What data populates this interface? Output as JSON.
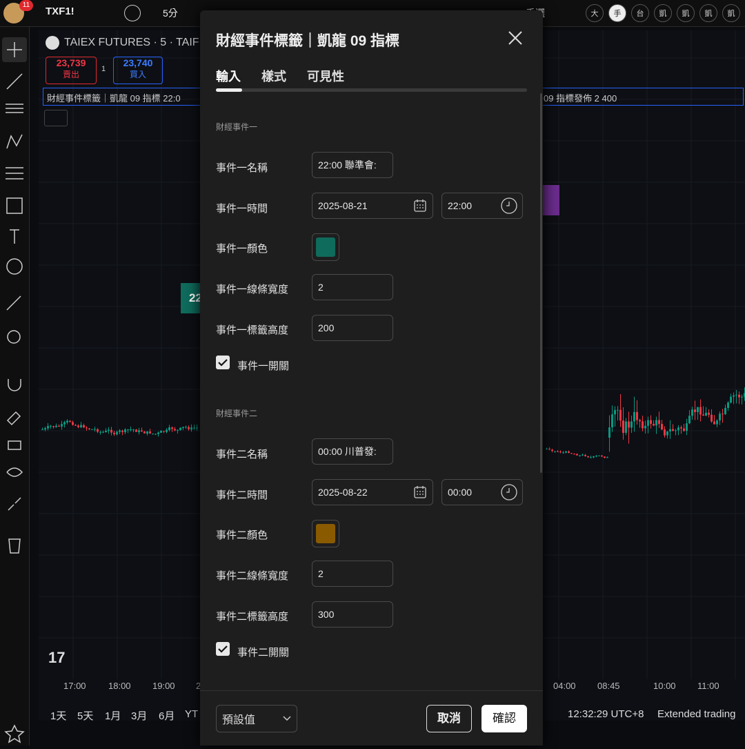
{
  "topbar": {
    "badge": "11",
    "symbol": "TXF1!",
    "interval": "5分",
    "layout": "手選",
    "chips": [
      "大",
      "手",
      "台",
      "凱",
      "凱",
      "凱",
      "凱"
    ]
  },
  "legend": {
    "title": "TAIEX FUTURES · 5 · TAIF",
    "sell_price": "23,739",
    "sell": "賣出",
    "spread": "1",
    "buy_price": "23,740",
    "buy": "買入",
    "indicator_left": "財經事件標籤｜凱龍 09 指標 22:0",
    "indicator_right": "09 指標發佈 2 400"
  },
  "chart": {
    "event_label": "22",
    "time_axis": [
      "17:00",
      "18:00",
      "19:00",
      "2",
      "04:00",
      "08:45",
      "10:00",
      "11:00"
    ]
  },
  "bottombar": {
    "ranges": [
      "1天",
      "5天",
      "1月",
      "3月",
      "6月",
      "YT"
    ],
    "clock": "12:32:29 UTC+8",
    "session": "Extended trading"
  },
  "dialog": {
    "title": "財經事件標籤｜凱龍 09 指標",
    "tabs": [
      "輸入",
      "樣式",
      "可見性"
    ],
    "sections": [
      {
        "heading": "財經事件一",
        "name_label": "事件一名稱",
        "name_value": "22:00 聯準會:",
        "time_label": "事件一時間",
        "date": "2025-08-21",
        "time": "22:00",
        "color_label": "事件一顏色",
        "width_label": "事件一線條寬度",
        "width": "2",
        "height_label": "事件一標籤高度",
        "height": "200",
        "toggle_label": "事件一開關"
      },
      {
        "heading": "財經事件二",
        "name_label": "事件二名稱",
        "name_value": "00:00 川普發:",
        "time_label": "事件二時間",
        "date": "2025-08-22",
        "time": "00:00",
        "color_label": "事件二顏色",
        "width_label": "事件二線條寬度",
        "width": "2",
        "height_label": "事件二標籤高度",
        "height": "300",
        "toggle_label": "事件二開關"
      }
    ],
    "footer": {
      "preset": "預設值",
      "cancel": "取消",
      "ok": "確認"
    }
  }
}
